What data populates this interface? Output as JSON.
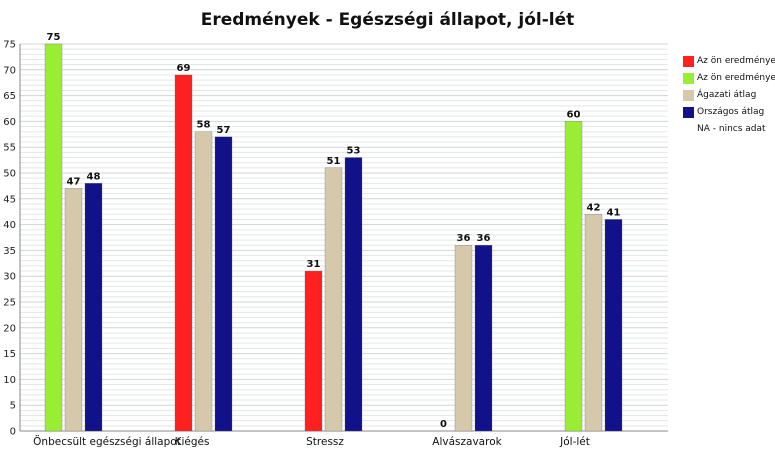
{
  "chart_data": {
    "type": "bar",
    "title": "Eredmények - Egészségi állapot, jól-lét",
    "categories": [
      "Önbecsült egészségi állapot",
      "Kiégés",
      "Stressz",
      "Alvászavarok",
      "Jól-lét"
    ],
    "ylim": [
      0,
      75
    ],
    "yticks": [
      0,
      5,
      10,
      15,
      20,
      25,
      30,
      35,
      40,
      45,
      50,
      55,
      60,
      65,
      70,
      75
    ],
    "grid": true,
    "legend_position": "right",
    "series": [
      {
        "name": "Az ön eredménye",
        "color": "#ff2020",
        "values": [
          null,
          69,
          31,
          0,
          null
        ]
      },
      {
        "name": "Az ön eredménye",
        "color": "#99ee33",
        "values": [
          75,
          null,
          null,
          null,
          60
        ]
      },
      {
        "name": "Ágazati átlag",
        "color": "#d6c8aa",
        "values": [
          47,
          58,
          51,
          36,
          42
        ]
      },
      {
        "name": "Országos átlag",
        "color": "#11118a",
        "values": [
          48,
          57,
          53,
          36,
          41
        ]
      }
    ],
    "legend_note": "NA - nincs adat"
  }
}
